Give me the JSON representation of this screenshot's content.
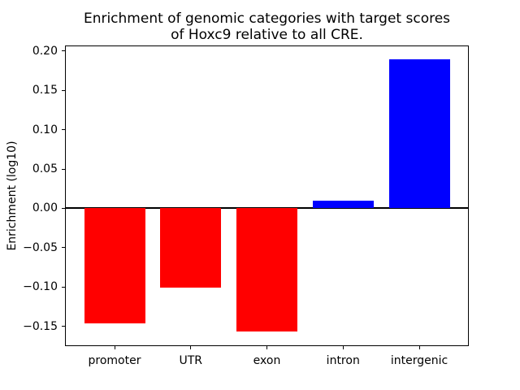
{
  "chart_data": {
    "type": "bar",
    "title": "Enrichment of genomic categories with target scores\nof Hoxc9 relative to all CRE.",
    "xlabel": "",
    "ylabel": "Enrichment (log10)",
    "categories": [
      "promoter",
      "UTR",
      "exon",
      "intron",
      "intergenic"
    ],
    "values": [
      -0.146,
      -0.101,
      -0.156,
      0.01,
      0.189
    ],
    "bar_colors": [
      "#ff0000",
      "#ff0000",
      "#ff0000",
      "#0000ff",
      "#0000ff"
    ],
    "negative_color": "#ff0000",
    "positive_color": "#0000ff",
    "ylim": [
      -0.174,
      0.206
    ],
    "xlim": [
      -0.64,
      4.64
    ],
    "bar_width": 0.8,
    "yticks": [
      0.2,
      0.15,
      0.1,
      0.05,
      0.0,
      -0.05,
      -0.1,
      -0.15
    ],
    "ytick_labels": [
      "0.20",
      "0.15",
      "0.10",
      "0.05",
      "0.00",
      "−0.05",
      "−0.10",
      "−0.15"
    ],
    "grid": false,
    "legend": false,
    "zero_line": true,
    "spine_color": "#000000",
    "background_color": "#ffffff"
  }
}
